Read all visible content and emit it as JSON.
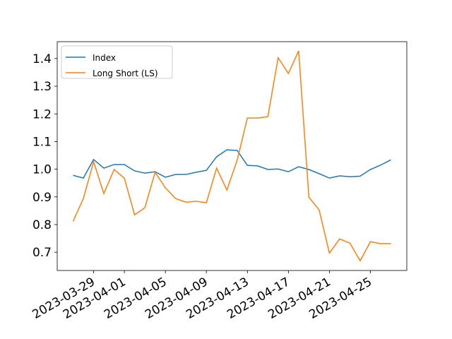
{
  "chart_data": {
    "type": "line",
    "x": [
      "2023-03-27",
      "2023-03-28",
      "2023-03-29",
      "2023-03-30",
      "2023-03-31",
      "2023-04-01",
      "2023-04-02",
      "2023-04-03",
      "2023-04-04",
      "2023-04-05",
      "2023-04-06",
      "2023-04-07",
      "2023-04-08",
      "2023-04-09",
      "2023-04-10",
      "2023-04-11",
      "2023-04-12",
      "2023-04-13",
      "2023-04-14",
      "2023-04-15",
      "2023-04-16",
      "2023-04-17",
      "2023-04-18",
      "2023-04-19",
      "2023-04-20",
      "2023-04-21",
      "2023-04-22",
      "2023-04-23",
      "2023-04-24",
      "2023-04-25",
      "2023-04-26",
      "2023-04-27"
    ],
    "series": [
      {
        "name": "Index",
        "color": "#1f77b4",
        "values": [
          0.978,
          0.968,
          1.035,
          1.004,
          1.017,
          1.017,
          0.994,
          0.986,
          0.991,
          0.971,
          0.981,
          0.981,
          0.989,
          0.996,
          1.045,
          1.07,
          1.068,
          1.014,
          1.012,
          0.999,
          1.001,
          0.991,
          1.009,
          0.999,
          0.984,
          0.968,
          0.976,
          0.973,
          0.975,
          0.999,
          1.015,
          1.034
        ]
      },
      {
        "name": "Long Short (LS)",
        "color": "#ff7f0e",
        "values": [
          0.812,
          0.894,
          1.027,
          0.912,
          0.999,
          0.968,
          0.835,
          0.861,
          0.989,
          0.933,
          0.894,
          0.881,
          0.884,
          0.879,
          1.004,
          0.925,
          1.032,
          1.185,
          1.185,
          1.19,
          1.403,
          1.346,
          1.428,
          0.899,
          0.853,
          0.697,
          0.748,
          0.733,
          0.669,
          0.738,
          0.731,
          0.731
        ]
      }
    ],
    "xlim": [
      "2023-03-25T10:48",
      "2023-04-28T13:12"
    ],
    "xticks": [
      "2023-03-29",
      "2023-04-01",
      "2023-04-05",
      "2023-04-09",
      "2023-04-13",
      "2023-04-17",
      "2023-04-21",
      "2023-04-25"
    ],
    "ylim": [
      0.634,
      1.461
    ],
    "yticks": [
      0.7,
      0.8,
      0.9,
      {
        "value": 1.0,
        "label": "1.0"
      },
      1.1,
      1.2,
      1.3,
      1.4
    ],
    "legend": "upper left"
  }
}
